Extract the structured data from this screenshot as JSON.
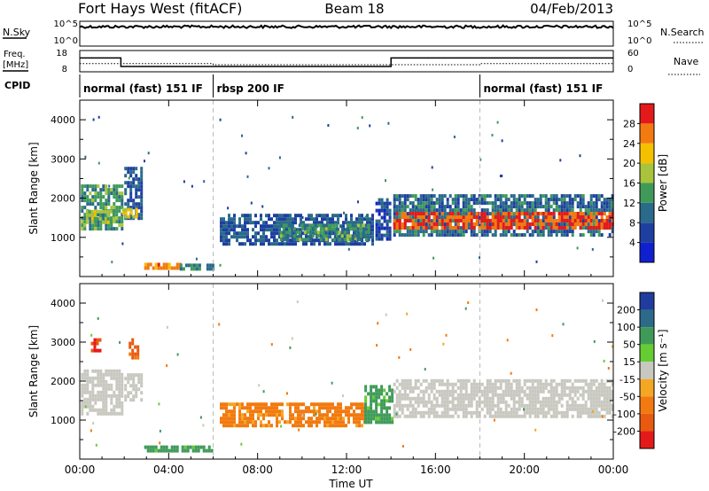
{
  "header": {
    "station": "Fort Hays West (fitACF)",
    "beam": "Beam 18",
    "date": "04/Feb/2013"
  },
  "aux_labels": {
    "nsky": "N.Sky",
    "nsearch": "N.Search",
    "freq_line1": "Freq.",
    "freq_line2": "[MHz]",
    "nave": "Nave",
    "cpid": "CPID",
    "noise_ticks_left": [
      "10^5",
      "10^0"
    ],
    "noise_ticks_right": [
      "10^5",
      "10^0"
    ],
    "freq_ticks_left": [
      "18",
      "8"
    ],
    "freq_ticks_right": [
      "60",
      "0"
    ]
  },
  "cpid_segments": [
    {
      "label": "normal (fast) 151 IF",
      "start_h": 0,
      "end_h": 6
    },
    {
      "label": "rbsp 200 IF",
      "start_h": 6,
      "end_h": 18
    },
    {
      "label": "normal (fast) 151 IF",
      "start_h": 18,
      "end_h": 24
    }
  ],
  "chart_data": [
    {
      "type": "heatmap",
      "name": "power",
      "ylabel": "Slant Range [km]",
      "xlim": [
        0,
        24
      ],
      "ylim": [
        0,
        4500
      ],
      "yticks": [
        1000,
        2000,
        3000,
        4000
      ],
      "colorbar": {
        "label": "Power [dB]",
        "ticks": [
          4,
          8,
          12,
          16,
          20,
          24,
          28
        ],
        "range": [
          0,
          32
        ],
        "colors": [
          "#1020d0",
          "#1e3fa0",
          "#2a6a8a",
          "#3f9a5a",
          "#a9c43c",
          "#f5c000",
          "#f27a10",
          "#e41a1a"
        ]
      },
      "regions": [
        {
          "x0": 0.05,
          "x1": 1.9,
          "y0": 1250,
          "y1": 2350,
          "level": 13
        },
        {
          "x0": 0.15,
          "x1": 1.5,
          "y0": 1400,
          "y1": 1700,
          "level": 18
        },
        {
          "x0": 2.0,
          "x1": 2.8,
          "y0": 1450,
          "y1": 2800,
          "level": 8
        },
        {
          "x0": 1.9,
          "x1": 2.5,
          "y0": 1500,
          "y1": 1750,
          "level": 20
        },
        {
          "x0": 2.9,
          "x1": 4.5,
          "y0": 200,
          "y1": 350,
          "level": 25
        },
        {
          "x0": 4.5,
          "x1": 6.0,
          "y0": 200,
          "y1": 330,
          "level": 12
        },
        {
          "x0": 6.3,
          "x1": 13.2,
          "y0": 800,
          "y1": 1600,
          "level": 8
        },
        {
          "x0": 9.0,
          "x1": 13.0,
          "y0": 950,
          "y1": 1350,
          "level": 13
        },
        {
          "x0": 13.3,
          "x1": 14.0,
          "y0": 1000,
          "y1": 2000,
          "level": 7
        },
        {
          "x0": 14.1,
          "x1": 24.0,
          "y0": 1050,
          "y1": 2100,
          "level": 10
        },
        {
          "x0": 14.1,
          "x1": 24.0,
          "y0": 1200,
          "y1": 1650,
          "level": 28
        }
      ]
    },
    {
      "type": "heatmap",
      "name": "velocity",
      "xlabel": "Time UT",
      "ylabel": "Slant Range [km]",
      "xlim": [
        0,
        24
      ],
      "ylim": [
        0,
        4500
      ],
      "xticks": [
        "00:00",
        "04:00",
        "08:00",
        "12:00",
        "16:00",
        "20:00",
        "00:00"
      ],
      "yticks": [
        1000,
        2000,
        3000,
        4000
      ],
      "colorbar": {
        "label": "Velocity [m s⁻¹]",
        "ticks": [
          200,
          100,
          50,
          15,
          -15,
          -50,
          -100,
          -200
        ],
        "colors": [
          "#1f3c9e",
          "#2d6a8a",
          "#3f9a5a",
          "#66cc33",
          "#c8c8c0",
          "#f5a623",
          "#f27a10",
          "#e85a10",
          "#e41a1a"
        ]
      },
      "regions": [
        {
          "x0": 0.05,
          "x1": 1.9,
          "y0": 1200,
          "y1": 2300,
          "value": 0
        },
        {
          "x0": 0.5,
          "x1": 0.9,
          "y0": 2800,
          "y1": 3100,
          "value": -150
        },
        {
          "x0": 2.0,
          "x1": 2.8,
          "y0": 1500,
          "y1": 2200,
          "value": 0
        },
        {
          "x0": 2.2,
          "x1": 2.6,
          "y0": 2600,
          "y1": 3100,
          "value": -80
        },
        {
          "x0": 2.9,
          "x1": 6.0,
          "y0": 200,
          "y1": 350,
          "value": 40
        },
        {
          "x0": 6.3,
          "x1": 12.8,
          "y0": 850,
          "y1": 1450,
          "value": -40
        },
        {
          "x0": 12.8,
          "x1": 14.0,
          "y0": 950,
          "y1": 1900,
          "value": 40
        },
        {
          "x0": 14.1,
          "x1": 24.0,
          "y0": 1050,
          "y1": 2050,
          "value": 0
        }
      ]
    }
  ],
  "noise_series": {
    "nsky_level": 0.78
  },
  "freq_steps": [
    {
      "start_h": 0,
      "end_h": 1.85,
      "mhz": 14.5
    },
    {
      "start_h": 1.85,
      "end_h": 14.0,
      "mhz": 10.5
    },
    {
      "start_h": 14.0,
      "end_h": 24.0,
      "mhz": 14.5
    }
  ],
  "nave_steps": [
    {
      "start_h": 0,
      "end_h": 6.0,
      "value": 23
    },
    {
      "start_h": 6.0,
      "end_h": 18.0,
      "value": 20
    },
    {
      "start_h": 18.0,
      "end_h": 24.0,
      "value": 23
    }
  ]
}
